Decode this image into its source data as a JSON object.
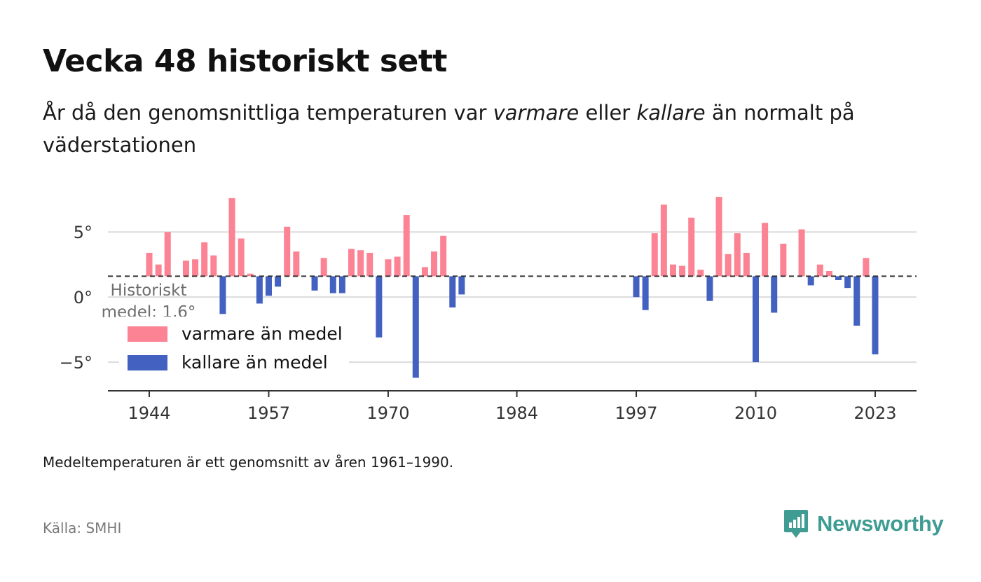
{
  "title": "Vecka 48 historiskt sett",
  "subtitle": {
    "part1": "År då den genomsnittliga temperaturen var ",
    "em1": "varmare",
    "part2": " eller ",
    "em2": "kallare",
    "part3": " än normalt på väderstationen"
  },
  "note": "Medeltemperaturen är ett genomsnitt av åren 1961–1990.",
  "source": "Källa: SMHI",
  "brand": {
    "name": "Newsworthy",
    "icon": "newsworthy-logo-icon",
    "color": "#3f9c92"
  },
  "colors": {
    "warm": "#fb8394",
    "cold": "#4361c0",
    "grid": "#dcdcdc",
    "axis": "#333333"
  },
  "chart_data": {
    "type": "bar",
    "baseline": 1.6,
    "baseline_label_line1": "Historiskt",
    "baseline_label_line2": "medel: 1,6°",
    "ylim": [
      -7.2,
      8.4
    ],
    "xlim": [
      1939.5,
      2027.5
    ],
    "y_ticks": [
      5,
      0,
      -5
    ],
    "y_tick_labels": [
      "5°",
      "0°",
      "−5°"
    ],
    "x_ticks": [
      1944,
      1957,
      1970,
      1984,
      1997,
      2010,
      2023
    ],
    "x_tick_labels": [
      "1944",
      "1957",
      "1970",
      "1984",
      "1997",
      "2010",
      "2023"
    ],
    "grid": true,
    "legend": {
      "position": "bottom-left",
      "warm_label": "varmare än medel",
      "cold_label": "kallare än medel"
    },
    "points": [
      {
        "year": 1944,
        "value": 3.4
      },
      {
        "year": 1945,
        "value": 2.5
      },
      {
        "year": 1946,
        "value": 5.0
      },
      {
        "year": 1948,
        "value": 2.8
      },
      {
        "year": 1949,
        "value": 2.9
      },
      {
        "year": 1950,
        "value": 4.2
      },
      {
        "year": 1951,
        "value": 3.2
      },
      {
        "year": 1952,
        "value": -1.3
      },
      {
        "year": 1953,
        "value": 7.6
      },
      {
        "year": 1954,
        "value": 4.5
      },
      {
        "year": 1955,
        "value": 1.8
      },
      {
        "year": 1956,
        "value": -0.5
      },
      {
        "year": 1957,
        "value": 0.1
      },
      {
        "year": 1958,
        "value": 0.8
      },
      {
        "year": 1959,
        "value": 5.4
      },
      {
        "year": 1960,
        "value": 3.5
      },
      {
        "year": 1962,
        "value": 0.5
      },
      {
        "year": 1963,
        "value": 3.0
      },
      {
        "year": 1964,
        "value": 0.3
      },
      {
        "year": 1965,
        "value": 0.3
      },
      {
        "year": 1966,
        "value": 3.7
      },
      {
        "year": 1967,
        "value": 3.6
      },
      {
        "year": 1968,
        "value": 3.4
      },
      {
        "year": 1969,
        "value": -3.1
      },
      {
        "year": 1970,
        "value": 2.9
      },
      {
        "year": 1971,
        "value": 3.1
      },
      {
        "year": 1972,
        "value": 6.3
      },
      {
        "year": 1973,
        "value": -6.2
      },
      {
        "year": 1974,
        "value": 2.3
      },
      {
        "year": 1975,
        "value": 3.5
      },
      {
        "year": 1976,
        "value": 4.7
      },
      {
        "year": 1977,
        "value": -0.8
      },
      {
        "year": 1978,
        "value": 0.2
      },
      {
        "year": 1997,
        "value": 0.0
      },
      {
        "year": 1998,
        "value": -1.0
      },
      {
        "year": 1999,
        "value": 4.9
      },
      {
        "year": 2000,
        "value": 7.1
      },
      {
        "year": 2001,
        "value": 2.5
      },
      {
        "year": 2002,
        "value": 2.4
      },
      {
        "year": 2003,
        "value": 6.1
      },
      {
        "year": 2004,
        "value": 2.1
      },
      {
        "year": 2005,
        "value": -0.3
      },
      {
        "year": 2006,
        "value": 7.7
      },
      {
        "year": 2007,
        "value": 3.3
      },
      {
        "year": 2008,
        "value": 4.9
      },
      {
        "year": 2009,
        "value": 3.4
      },
      {
        "year": 2010,
        "value": -5.0
      },
      {
        "year": 2011,
        "value": 5.7
      },
      {
        "year": 2012,
        "value": -1.2
      },
      {
        "year": 2013,
        "value": 4.1
      },
      {
        "year": 2015,
        "value": 5.2
      },
      {
        "year": 2016,
        "value": 0.9
      },
      {
        "year": 2017,
        "value": 2.5
      },
      {
        "year": 2018,
        "value": 2.0
      },
      {
        "year": 2019,
        "value": 1.3
      },
      {
        "year": 2020,
        "value": 0.7
      },
      {
        "year": 2021,
        "value": -2.2
      },
      {
        "year": 2022,
        "value": 3.0
      },
      {
        "year": 2023,
        "value": -4.4
      }
    ]
  }
}
